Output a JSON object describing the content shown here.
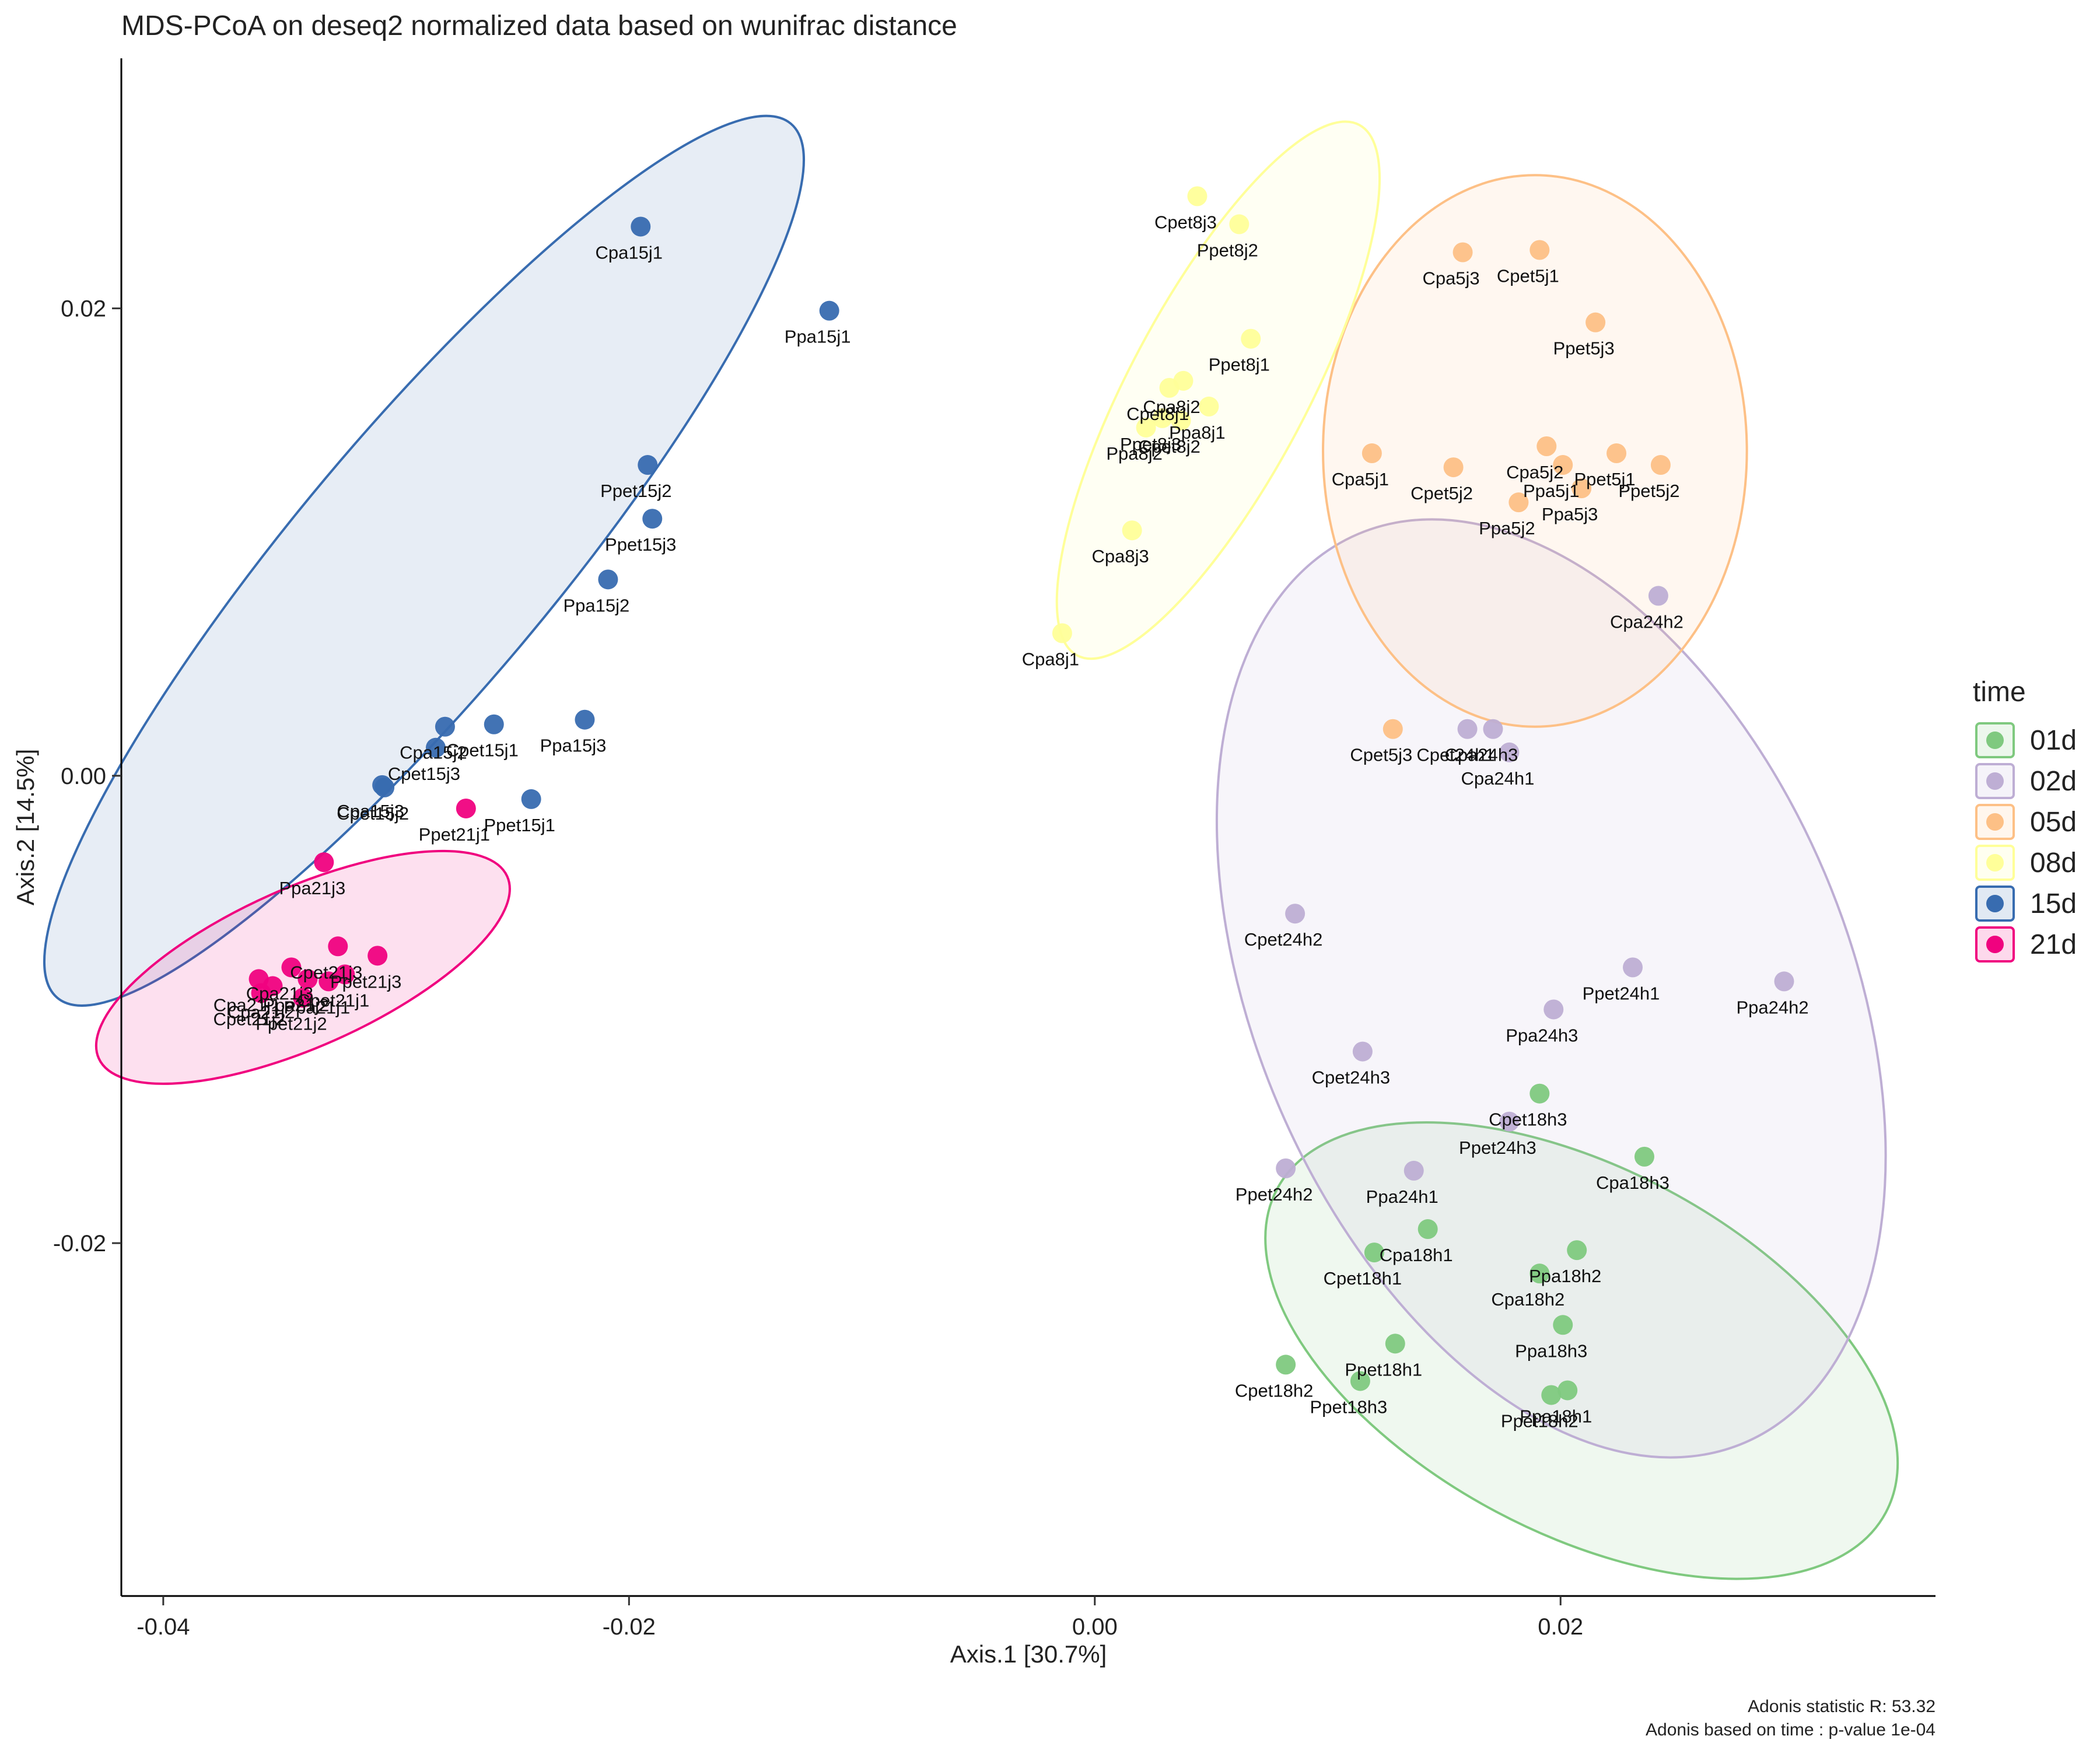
{
  "chart_data": {
    "type": "scatter",
    "title": "MDS-PCoA on deseq2 normalized data based on wunifrac distance",
    "xlabel": "Axis.1   [30.7%]",
    "ylabel": "Axis.2  [14.5%]",
    "xlim": [
      -0.0418,
      0.0361
    ],
    "ylim": [
      -0.0351,
      0.0307
    ],
    "xticks": [
      -0.04,
      -0.02,
      0.0,
      0.02
    ],
    "xtick_labels": [
      "-0.04",
      "-0.02",
      "0.00",
      "0.02"
    ],
    "yticks": [
      0.02,
      0.0,
      -0.02
    ],
    "ytick_labels": [
      "0.02",
      "0.00",
      "-0.02"
    ],
    "grid": false,
    "legend": {
      "title": "time",
      "position": "right"
    },
    "annotations": [
      "Adonis statistic R: 53.32",
      "Adonis based on  time : p-value 1e-04"
    ],
    "series": [
      {
        "name": "01d",
        "color": "#7fc97f",
        "fill": "#7fc97f",
        "ellipse": {
          "cx": 0.0209,
          "cy": -0.0246,
          "rx": 0.0148,
          "ry": 0.0078,
          "angle": 28
        },
        "points": [
          {
            "label": "Cpet18h3",
            "x": 0.0191,
            "y": -0.0136
          },
          {
            "label": "Cpa18h3",
            "x": 0.0236,
            "y": -0.0163
          },
          {
            "label": "Cpa18h1",
            "x": 0.0143,
            "y": -0.0194
          },
          {
            "label": "Cpet18h1",
            "x": 0.012,
            "y": -0.0204
          },
          {
            "label": "Ppa18h2",
            "x": 0.0207,
            "y": -0.0203
          },
          {
            "label": "Cpa18h2",
            "x": 0.0191,
            "y": -0.0213
          },
          {
            "label": "Ppa18h3",
            "x": 0.0201,
            "y": -0.0235
          },
          {
            "label": "Ppet18h1",
            "x": 0.0129,
            "y": -0.0243
          },
          {
            "label": "Cpet18h2",
            "x": 0.0082,
            "y": -0.0252
          },
          {
            "label": "Ppet18h3",
            "x": 0.0114,
            "y": -0.0259
          },
          {
            "label": "Ppa18h1",
            "x": 0.0203,
            "y": -0.0263
          },
          {
            "label": "Ppet18h2",
            "x": 0.0196,
            "y": -0.0265
          }
        ]
      },
      {
        "name": "02d",
        "color": "#beaed4",
        "fill": "#beaed4",
        "ellipse": {
          "cx": 0.0196,
          "cy": -0.0091,
          "rx": 0.0212,
          "ry": 0.0127,
          "angle": 67
        },
        "points": [
          {
            "label": "Cpa24h2",
            "x": 0.0242,
            "y": 0.0077
          },
          {
            "label": "Cpet24h1",
            "x": 0.016,
            "y": 0.002
          },
          {
            "label": "Cpa24h3",
            "x": 0.0171,
            "y": 0.002
          },
          {
            "label": "Cpa24h1",
            "x": 0.0178,
            "y": 0.001
          },
          {
            "label": "Cpet24h2",
            "x": 0.0086,
            "y": -0.0059
          },
          {
            "label": "Ppet24h1",
            "x": 0.0231,
            "y": -0.0082
          },
          {
            "label": "Ppa24h2",
            "x": 0.0296,
            "y": -0.0088
          },
          {
            "label": "Ppa24h3",
            "x": 0.0197,
            "y": -0.01
          },
          {
            "label": "Cpet24h3",
            "x": 0.0115,
            "y": -0.0118
          },
          {
            "label": "Ppet24h3",
            "x": 0.0178,
            "y": -0.0148
          },
          {
            "label": "Ppa24h1",
            "x": 0.0137,
            "y": -0.0169
          },
          {
            "label": "Ppet24h2",
            "x": 0.0082,
            "y": -0.0168
          }
        ]
      },
      {
        "name": "05d",
        "color": "#fdc086",
        "fill": "#fdc086",
        "ellipse": {
          "cx": 0.0189,
          "cy": 0.0139,
          "rx": 0.0091,
          "ry": 0.0118,
          "angle": 0
        },
        "points": [
          {
            "label": "Cpa5j3",
            "x": 0.0158,
            "y": 0.0224
          },
          {
            "label": "Cpet5j1",
            "x": 0.0191,
            "y": 0.0225
          },
          {
            "label": "Ppet5j3",
            "x": 0.0215,
            "y": 0.0194
          },
          {
            "label": "Cpa5j1",
            "x": 0.0119,
            "y": 0.0138
          },
          {
            "label": "Cpet5j2",
            "x": 0.0154,
            "y": 0.0132
          },
          {
            "label": "Cpa5j2",
            "x": 0.0194,
            "y": 0.0141
          },
          {
            "label": "Ppa5j1",
            "x": 0.0201,
            "y": 0.0133
          },
          {
            "label": "Ppet5j1",
            "x": 0.0224,
            "y": 0.0138
          },
          {
            "label": "Ppet5j2",
            "x": 0.0243,
            "y": 0.0133
          },
          {
            "label": "Ppa5j3",
            "x": 0.0209,
            "y": 0.0123
          },
          {
            "label": "Ppa5j2",
            "x": 0.0182,
            "y": 0.0117
          },
          {
            "label": "Cpet5j3",
            "x": 0.0128,
            "y": 0.002
          }
        ]
      },
      {
        "name": "08d",
        "color": "#ffff99",
        "fill": "#ffff99",
        "ellipse": {
          "cx": 0.0053,
          "cy": 0.0165,
          "rx": 0.0129,
          "ry": 0.0038,
          "angle": -62
        },
        "points": [
          {
            "label": "Cpet8j3",
            "x": 0.0044,
            "y": 0.0248
          },
          {
            "label": "Ppet8j2",
            "x": 0.0062,
            "y": 0.0236
          },
          {
            "label": "Ppet8j1",
            "x": 0.0067,
            "y": 0.0187
          },
          {
            "label": "Cpa8j2",
            "x": 0.0038,
            "y": 0.0169
          },
          {
            "label": "Cpet8j1",
            "x": 0.0032,
            "y": 0.0166
          },
          {
            "label": "Ppa8j1",
            "x": 0.0049,
            "y": 0.0158
          },
          {
            "label": "Cpet8j2",
            "x": 0.0037,
            "y": 0.0152
          },
          {
            "label": "Ppet8j3",
            "x": 0.0029,
            "y": 0.0153
          },
          {
            "label": "Ppa8j2",
            "x": 0.0022,
            "y": 0.0149
          },
          {
            "label": "Cpa8j3",
            "x": 0.0016,
            "y": 0.0105
          },
          {
            "label": "Cpa8j1",
            "x": -0.0014,
            "y": 0.0061
          }
        ]
      },
      {
        "name": "15d",
        "color": "#386cb0",
        "fill": "#386cb0",
        "ellipse": {
          "cx": -0.0288,
          "cy": 0.0092,
          "rx": 0.0245,
          "ry": 0.0055,
          "angle": -50
        },
        "points": [
          {
            "label": "Cpa15j1",
            "x": -0.0195,
            "y": 0.0235
          },
          {
            "label": "Ppa15j1",
            "x": -0.0114,
            "y": 0.0199
          },
          {
            "label": "Ppet15j2",
            "x": -0.0192,
            "y": 0.0133
          },
          {
            "label": "Ppet15j3",
            "x": -0.019,
            "y": 0.011
          },
          {
            "label": "Ppa15j2",
            "x": -0.0209,
            "y": 0.0084
          },
          {
            "label": "Ppa15j3",
            "x": -0.0219,
            "y": 0.0024
          },
          {
            "label": "Cpet15j1",
            "x": -0.0258,
            "y": 0.0022
          },
          {
            "label": "Cpa15j2",
            "x": -0.0279,
            "y": 0.0021
          },
          {
            "label": "Cpet15j3",
            "x": -0.0283,
            "y": 0.0012
          },
          {
            "label": "Cpet15j2",
            "x": -0.0305,
            "y": -0.0005
          },
          {
            "label": "Cpa15j3",
            "x": -0.0306,
            "y": -0.0004
          },
          {
            "label": "Ppet15j1",
            "x": -0.0242,
            "y": -0.001
          }
        ]
      },
      {
        "name": "21d",
        "color": "#f0027f",
        "fill": "#f0027f",
        "ellipse": {
          "cx": -0.034,
          "cy": -0.0082,
          "rx": 0.0096,
          "ry": 0.0034,
          "angle": -24
        },
        "points": [
          {
            "label": "Ppet21j1",
            "x": -0.027,
            "y": -0.0014
          },
          {
            "label": "Ppa21j3",
            "x": -0.0331,
            "y": -0.0037
          },
          {
            "label": "Cpet21j3",
            "x": -0.0325,
            "y": -0.0073
          },
          {
            "label": "Ppet21j3",
            "x": -0.0308,
            "y": -0.0077
          },
          {
            "label": "Cpet21j1",
            "x": -0.0322,
            "y": -0.0085
          },
          {
            "label": "Ppa21j1",
            "x": -0.0329,
            "y": -0.0088
          },
          {
            "label": "Cpa21j3",
            "x": -0.0345,
            "y": -0.0082
          },
          {
            "label": "Ppa21j2",
            "x": -0.0338,
            "y": -0.0087
          },
          {
            "label": "Cpa21j2",
            "x": -0.0353,
            "y": -0.009
          },
          {
            "label": "Cpet21j2",
            "x": -0.0358,
            "y": -0.0093
          },
          {
            "label": "Cpa21j1",
            "x": -0.0359,
            "y": -0.0087
          },
          {
            "label": "Ppet21j2",
            "x": -0.034,
            "y": -0.0095
          }
        ]
      }
    ]
  }
}
